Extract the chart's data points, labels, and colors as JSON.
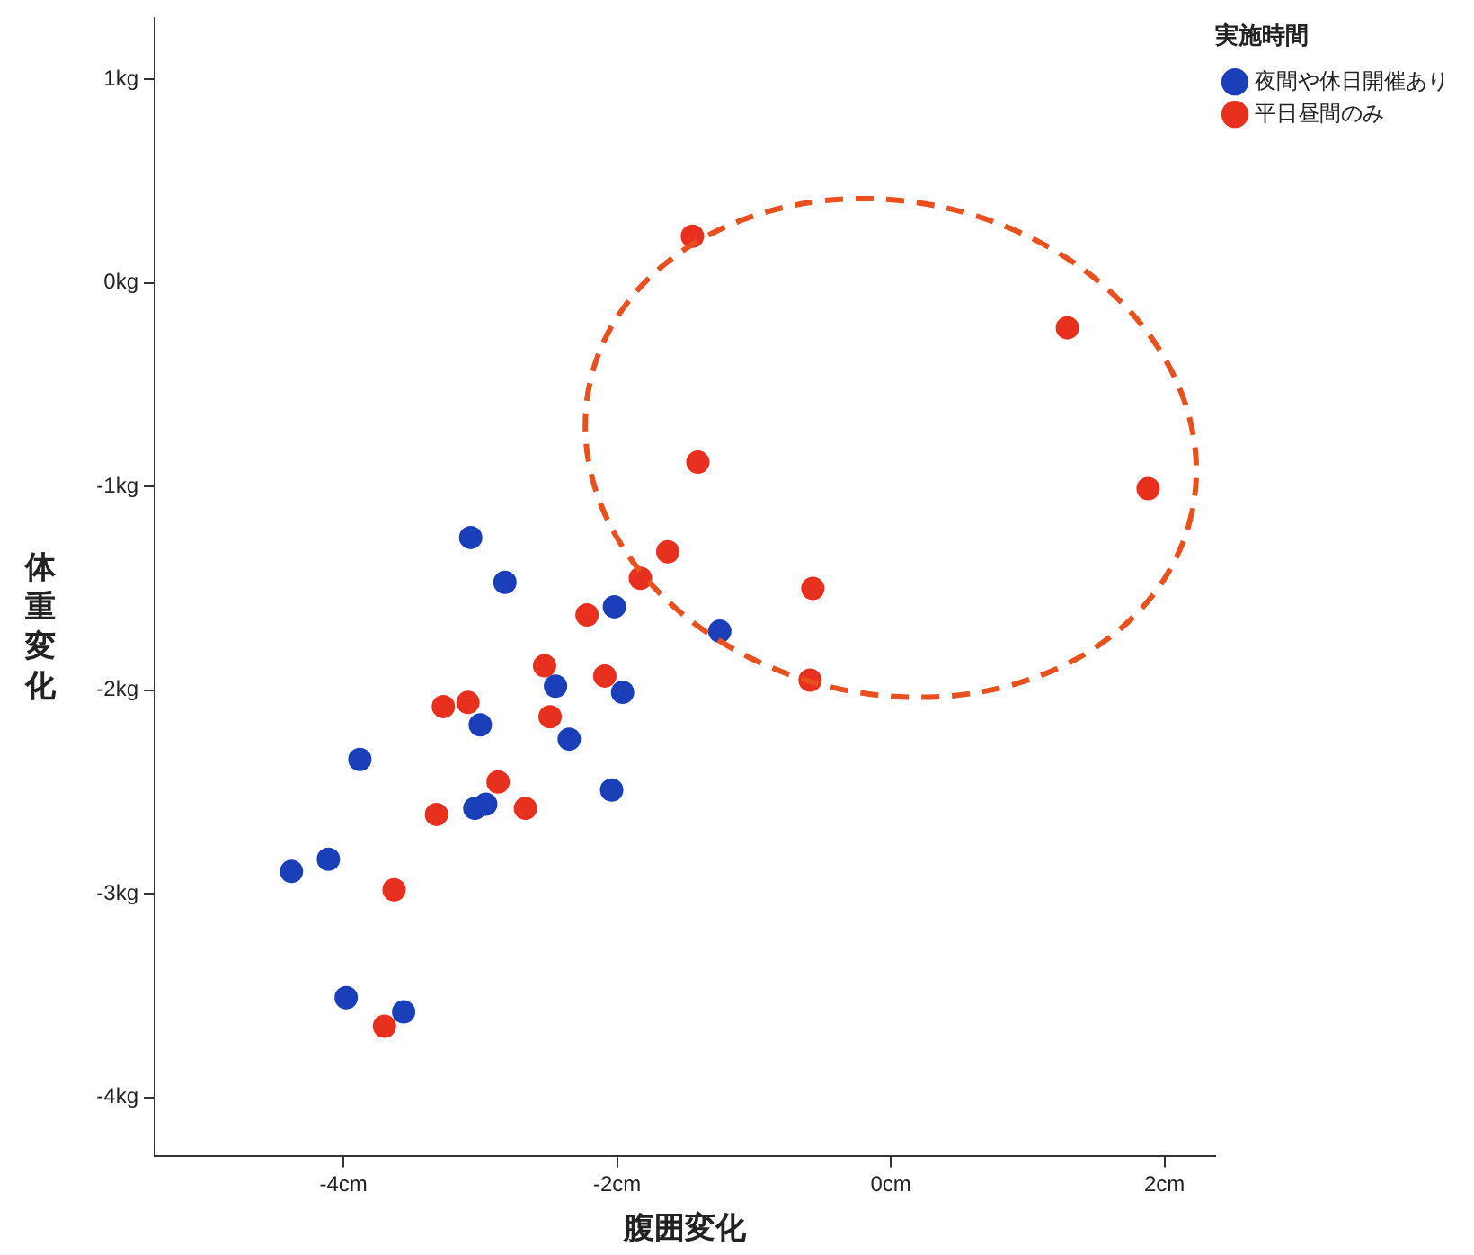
{
  "chart_data": {
    "type": "scatter",
    "xlabel": "腹囲変化",
    "ylabel": "体重変化",
    "legend_title": "実施時間",
    "legend": "top right",
    "marker": "circle",
    "grid": false,
    "xlim": [
      -5.38,
      2.37
    ],
    "ylim": [
      -4.29,
      1.3
    ],
    "xticks": [
      {
        "value": -4,
        "label": "-4cm"
      },
      {
        "value": -2,
        "label": "-2cm"
      },
      {
        "value": 0,
        "label": "0cm"
      },
      {
        "value": 2,
        "label": "2cm"
      }
    ],
    "yticks": [
      {
        "value": -4,
        "label": "-4kg"
      },
      {
        "value": -3,
        "label": "-3kg"
      },
      {
        "value": -2,
        "label": "-2kg"
      },
      {
        "value": -1,
        "label": "-1kg"
      },
      {
        "value": 0,
        "label": "0kg"
      },
      {
        "value": 1,
        "label": "1kg"
      }
    ],
    "series": [
      {
        "name": "夜間や休日開催あり",
        "color": "#1a3fb8",
        "x": [
          -3.07,
          -2.82,
          -2.02,
          -1.25,
          -2.45,
          -1.96,
          -3.0,
          -2.35,
          -3.88,
          -2.04,
          -3.04,
          -2.96,
          -4.11,
          -4.38,
          -3.98,
          -3.56
        ],
        "values": [
          -1.25,
          -1.47,
          -1.59,
          -1.71,
          -1.98,
          -2.01,
          -2.17,
          -2.24,
          -2.34,
          -2.49,
          -2.58,
          -2.56,
          -2.83,
          -2.89,
          -3.51,
          -3.58
        ]
      },
      {
        "name": "平日昼間のみ",
        "color": "#e8301e",
        "x": [
          -1.63,
          -1.83,
          -2.22,
          -2.53,
          -2.09,
          -3.27,
          -3.09,
          -2.49,
          -2.87,
          -3.32,
          -2.67,
          -3.63,
          -3.7,
          -1.45,
          1.29,
          -1.41,
          1.88,
          -0.57,
          -0.59
        ],
        "values": [
          -1.32,
          -1.45,
          -1.63,
          -1.88,
          -1.93,
          -2.08,
          -2.06,
          -2.13,
          -2.45,
          -2.61,
          -2.58,
          -2.98,
          -3.65,
          0.23,
          -0.22,
          -0.88,
          -1.01,
          -1.5,
          -1.95
        ]
      }
    ]
  }
}
